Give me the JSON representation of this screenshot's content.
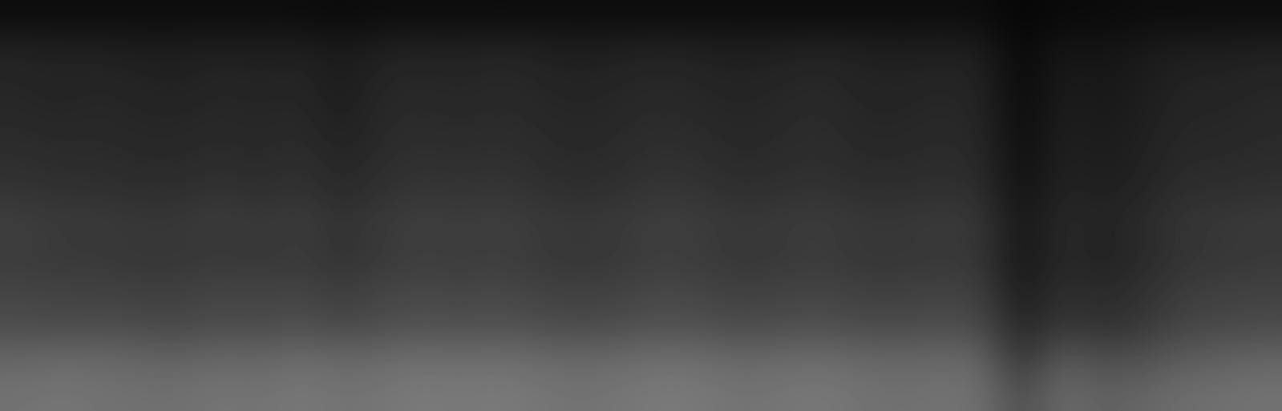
{
  "chart_data": {
    "type": "heatmap",
    "color": "gray",
    "tick_labels": false,
    "color_range": [
      0,
      1
    ],
    "cells": [
      [
        0.05,
        0.05,
        0.05,
        0.05,
        0.05,
        0.05,
        0.05,
        0.05,
        0.04,
        0.05,
        0.05,
        0.05,
        0.05,
        0.05,
        0.05,
        0.05,
        0.05,
        0.05,
        0.05,
        0.05,
        0.05,
        0.05,
        0.05,
        0.05,
        0.05,
        0.02,
        0.04,
        0.04,
        0.05,
        0.05,
        0.05,
        0.05
      ],
      [
        0.14,
        0.13,
        0.13,
        0.12,
        0.12,
        0.13,
        0.12,
        0.13,
        0.1,
        0.13,
        0.14,
        0.13,
        0.15,
        0.13,
        0.12,
        0.13,
        0.14,
        0.13,
        0.12,
        0.13,
        0.14,
        0.13,
        0.12,
        0.13,
        0.12,
        0.03,
        0.09,
        0.08,
        0.1,
        0.12,
        0.12,
        0.13
      ],
      [
        0.15,
        0.14,
        0.15,
        0.14,
        0.13,
        0.15,
        0.14,
        0.15,
        0.11,
        0.15,
        0.16,
        0.15,
        0.16,
        0.15,
        0.14,
        0.15,
        0.16,
        0.15,
        0.14,
        0.15,
        0.16,
        0.14,
        0.14,
        0.15,
        0.14,
        0.03,
        0.11,
        0.09,
        0.11,
        0.14,
        0.14,
        0.15
      ],
      [
        0.16,
        0.15,
        0.16,
        0.15,
        0.15,
        0.16,
        0.15,
        0.16,
        0.12,
        0.16,
        0.17,
        0.16,
        0.17,
        0.16,
        0.15,
        0.16,
        0.17,
        0.16,
        0.15,
        0.16,
        0.17,
        0.15,
        0.15,
        0.16,
        0.15,
        0.04,
        0.12,
        0.1,
        0.12,
        0.15,
        0.15,
        0.16
      ],
      [
        0.18,
        0.17,
        0.17,
        0.16,
        0.16,
        0.17,
        0.16,
        0.18,
        0.14,
        0.17,
        0.19,
        0.18,
        0.19,
        0.17,
        0.16,
        0.17,
        0.19,
        0.18,
        0.16,
        0.17,
        0.18,
        0.16,
        0.16,
        0.17,
        0.16,
        0.05,
        0.13,
        0.11,
        0.13,
        0.16,
        0.16,
        0.17
      ],
      [
        0.2,
        0.19,
        0.19,
        0.18,
        0.18,
        0.2,
        0.18,
        0.2,
        0.16,
        0.19,
        0.21,
        0.2,
        0.21,
        0.19,
        0.18,
        0.19,
        0.21,
        0.2,
        0.18,
        0.19,
        0.2,
        0.18,
        0.18,
        0.19,
        0.18,
        0.06,
        0.14,
        0.12,
        0.14,
        0.18,
        0.18,
        0.19
      ],
      [
        0.25,
        0.23,
        0.23,
        0.22,
        0.22,
        0.24,
        0.22,
        0.24,
        0.2,
        0.23,
        0.25,
        0.24,
        0.25,
        0.23,
        0.22,
        0.23,
        0.25,
        0.24,
        0.22,
        0.23,
        0.24,
        0.22,
        0.22,
        0.23,
        0.22,
        0.08,
        0.17,
        0.14,
        0.17,
        0.21,
        0.22,
        0.23
      ],
      [
        0.23,
        0.22,
        0.22,
        0.21,
        0.21,
        0.22,
        0.21,
        0.23,
        0.19,
        0.22,
        0.24,
        0.23,
        0.24,
        0.22,
        0.21,
        0.22,
        0.24,
        0.23,
        0.21,
        0.22,
        0.23,
        0.21,
        0.21,
        0.22,
        0.21,
        0.08,
        0.16,
        0.13,
        0.16,
        0.2,
        0.21,
        0.22
      ],
      [
        0.27,
        0.26,
        0.26,
        0.25,
        0.25,
        0.27,
        0.26,
        0.27,
        0.24,
        0.27,
        0.28,
        0.27,
        0.28,
        0.26,
        0.25,
        0.26,
        0.28,
        0.27,
        0.25,
        0.26,
        0.27,
        0.25,
        0.25,
        0.26,
        0.25,
        0.1,
        0.19,
        0.16,
        0.19,
        0.24,
        0.25,
        0.26
      ],
      [
        0.3,
        0.29,
        0.3,
        0.29,
        0.28,
        0.3,
        0.29,
        0.31,
        0.28,
        0.3,
        0.32,
        0.31,
        0.32,
        0.3,
        0.29,
        0.3,
        0.32,
        0.31,
        0.29,
        0.3,
        0.31,
        0.29,
        0.29,
        0.3,
        0.29,
        0.14,
        0.22,
        0.19,
        0.22,
        0.27,
        0.28,
        0.29
      ],
      [
        0.4,
        0.42,
        0.41,
        0.4,
        0.39,
        0.41,
        0.4,
        0.43,
        0.41,
        0.42,
        0.44,
        0.43,
        0.44,
        0.42,
        0.41,
        0.42,
        0.44,
        0.43,
        0.41,
        0.42,
        0.43,
        0.41,
        0.4,
        0.41,
        0.4,
        0.2,
        0.36,
        0.3,
        0.32,
        0.36,
        0.38,
        0.4
      ],
      [
        0.45,
        0.46,
        0.45,
        0.44,
        0.44,
        0.46,
        0.45,
        0.47,
        0.45,
        0.46,
        0.48,
        0.47,
        0.48,
        0.46,
        0.45,
        0.46,
        0.48,
        0.47,
        0.45,
        0.46,
        0.47,
        0.45,
        0.44,
        0.45,
        0.44,
        0.3,
        0.42,
        0.38,
        0.4,
        0.43,
        0.44,
        0.45
      ]
    ]
  }
}
